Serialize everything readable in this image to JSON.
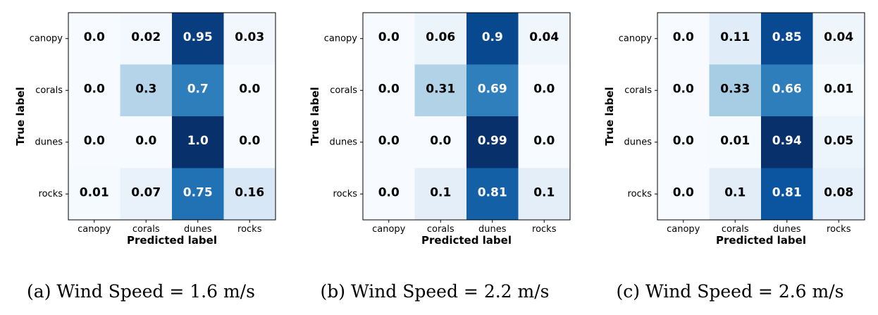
{
  "chart_data": [
    {
      "type": "heatmap",
      "caption": "(a) Wind Speed = 1.6 m/s",
      "xlabel": "Predicted label",
      "ylabel": "True label",
      "x_categories": [
        "canopy",
        "corals",
        "dunes",
        "rocks"
      ],
      "y_categories": [
        "canopy",
        "corals",
        "dunes",
        "rocks"
      ],
      "value_labels": [
        [
          "0.0",
          "0.02",
          "0.95",
          "0.03"
        ],
        [
          "0.0",
          "0.3",
          "0.7",
          "0.0"
        ],
        [
          "0.0",
          "0.0",
          "1.0",
          "0.0"
        ],
        [
          "0.01",
          "0.07",
          "0.75",
          "0.16"
        ]
      ],
      "values": [
        [
          0.0,
          0.02,
          0.95,
          0.03
        ],
        [
          0.0,
          0.3,
          0.7,
          0.0
        ],
        [
          0.0,
          0.0,
          1.0,
          0.0
        ],
        [
          0.01,
          0.07,
          0.75,
          0.16
        ]
      ],
      "colormap": "Blues",
      "grid": false
    },
    {
      "type": "heatmap",
      "caption": "(b) Wind Speed = 2.2 m/s",
      "xlabel": "Predicted label",
      "ylabel": "True label",
      "x_categories": [
        "canopy",
        "corals",
        "dunes",
        "rocks"
      ],
      "y_categories": [
        "canopy",
        "corals",
        "dunes",
        "rocks"
      ],
      "value_labels": [
        [
          "0.0",
          "0.06",
          "0.9",
          "0.04"
        ],
        [
          "0.0",
          "0.31",
          "0.69",
          "0.0"
        ],
        [
          "0.0",
          "0.0",
          "0.99",
          "0.0"
        ],
        [
          "0.0",
          "0.1",
          "0.81",
          "0.1"
        ]
      ],
      "values": [
        [
          0.0,
          0.06,
          0.9,
          0.04
        ],
        [
          0.0,
          0.31,
          0.69,
          0.0
        ],
        [
          0.0,
          0.0,
          0.99,
          0.0
        ],
        [
          0.0,
          0.1,
          0.81,
          0.1
        ]
      ],
      "colormap": "Blues",
      "grid": false
    },
    {
      "type": "heatmap",
      "caption": "(c) Wind Speed = 2.6 m/s",
      "xlabel": "Predicted label",
      "ylabel": "True label",
      "x_categories": [
        "canopy",
        "corals",
        "dunes",
        "rocks"
      ],
      "y_categories": [
        "canopy",
        "corals",
        "dunes",
        "rocks"
      ],
      "value_labels": [
        [
          "0.0",
          "0.11",
          "0.85",
          "0.04"
        ],
        [
          "0.0",
          "0.33",
          "0.66",
          "0.01"
        ],
        [
          "0.0",
          "0.01",
          "0.94",
          "0.05"
        ],
        [
          "0.0",
          "0.1",
          "0.81",
          "0.08"
        ]
      ],
      "values": [
        [
          0.0,
          0.11,
          0.85,
          0.04
        ],
        [
          0.0,
          0.33,
          0.66,
          0.01
        ],
        [
          0.0,
          0.01,
          0.94,
          0.05
        ],
        [
          0.0,
          0.1,
          0.81,
          0.08
        ]
      ],
      "colormap": "Blues",
      "grid": false
    }
  ]
}
